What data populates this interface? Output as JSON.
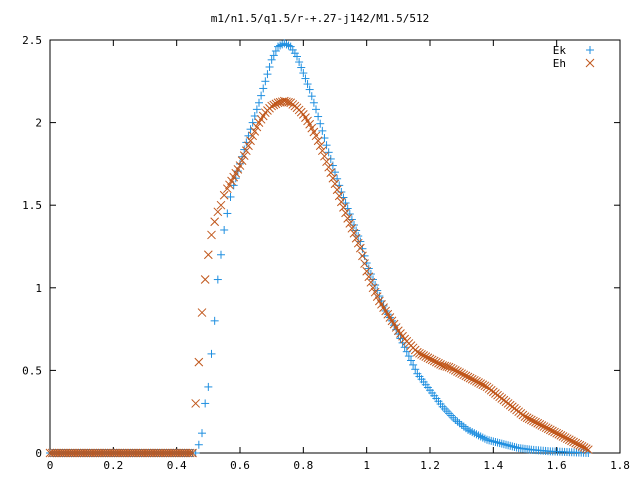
{
  "chart_data": {
    "type": "scatter",
    "title": "m1/n1.5/q1.5/r-+.27-j142/M1.5/512",
    "xlabel": "",
    "ylabel": "",
    "xlim": [
      0,
      1.8
    ],
    "ylim": [
      0,
      2.5
    ],
    "xticks": [
      0,
      0.2,
      0.4,
      0.6,
      0.8,
      1,
      1.2,
      1.4,
      1.6,
      1.8
    ],
    "xtick_labels": [
      "0",
      "0.2",
      "0.4",
      "0.6",
      "0.8",
      "1",
      "1.2",
      "1.4",
      "1.6",
      "1.8"
    ],
    "yticks": [
      0,
      0.5,
      1,
      1.5,
      2,
      2.5
    ],
    "ytick_labels": [
      "0",
      "0.5",
      "1",
      "1.5",
      "2",
      "2.5"
    ],
    "grid": false,
    "legend_position": "top-right",
    "series": [
      {
        "name": "Ek",
        "marker": "plus",
        "color": "#1f8fe0",
        "points": [
          [
            0.0,
            0.0
          ],
          [
            0.05,
            0.0
          ],
          [
            0.1,
            0.0
          ],
          [
            0.15,
            0.0
          ],
          [
            0.2,
            0.0
          ],
          [
            0.25,
            0.0
          ],
          [
            0.3,
            0.0
          ],
          [
            0.35,
            0.0
          ],
          [
            0.4,
            0.0
          ],
          [
            0.45,
            0.0
          ],
          [
            0.46,
            0.0
          ],
          [
            0.47,
            0.05
          ],
          [
            0.48,
            0.12
          ],
          [
            0.49,
            0.3
          ],
          [
            0.5,
            0.4
          ],
          [
            0.51,
            0.6
          ],
          [
            0.52,
            0.8
          ],
          [
            0.53,
            1.05
          ],
          [
            0.54,
            1.2
          ],
          [
            0.55,
            1.35
          ],
          [
            0.56,
            1.45
          ],
          [
            0.57,
            1.55
          ],
          [
            0.58,
            1.62
          ],
          [
            0.6,
            1.75
          ],
          [
            0.62,
            1.88
          ],
          [
            0.64,
            2.0
          ],
          [
            0.66,
            2.12
          ],
          [
            0.68,
            2.25
          ],
          [
            0.7,
            2.38
          ],
          [
            0.72,
            2.46
          ],
          [
            0.74,
            2.48
          ],
          [
            0.76,
            2.46
          ],
          [
            0.78,
            2.4
          ],
          [
            0.8,
            2.3
          ],
          [
            0.82,
            2.2
          ],
          [
            0.84,
            2.08
          ],
          [
            0.86,
            1.95
          ],
          [
            0.88,
            1.82
          ],
          [
            0.9,
            1.7
          ],
          [
            0.92,
            1.58
          ],
          [
            0.94,
            1.48
          ],
          [
            0.96,
            1.38
          ],
          [
            0.98,
            1.28
          ],
          [
            1.0,
            1.15
          ],
          [
            1.02,
            1.05
          ],
          [
            1.04,
            0.95
          ],
          [
            1.06,
            0.86
          ],
          [
            1.08,
            0.8
          ],
          [
            1.1,
            0.72
          ],
          [
            1.12,
            0.64
          ],
          [
            1.14,
            0.56
          ],
          [
            1.16,
            0.48
          ],
          [
            1.18,
            0.43
          ],
          [
            1.2,
            0.38
          ],
          [
            1.22,
            0.33
          ],
          [
            1.24,
            0.28
          ],
          [
            1.26,
            0.24
          ],
          [
            1.28,
            0.2
          ],
          [
            1.3,
            0.17
          ],
          [
            1.32,
            0.14
          ],
          [
            1.34,
            0.12
          ],
          [
            1.36,
            0.1
          ],
          [
            1.38,
            0.08
          ],
          [
            1.4,
            0.07
          ],
          [
            1.42,
            0.06
          ],
          [
            1.44,
            0.05
          ],
          [
            1.46,
            0.04
          ],
          [
            1.48,
            0.03
          ],
          [
            1.5,
            0.025
          ],
          [
            1.52,
            0.02
          ],
          [
            1.55,
            0.015
          ],
          [
            1.58,
            0.01
          ],
          [
            1.61,
            0.008
          ],
          [
            1.64,
            0.005
          ],
          [
            1.67,
            0.003
          ],
          [
            1.7,
            0.0
          ]
        ]
      },
      {
        "name": "Eh",
        "marker": "cross",
        "color": "#c0561a",
        "points": [
          [
            0.0,
            0.0
          ],
          [
            0.05,
            0.0
          ],
          [
            0.1,
            0.0
          ],
          [
            0.15,
            0.0
          ],
          [
            0.2,
            0.0
          ],
          [
            0.25,
            0.0
          ],
          [
            0.3,
            0.0
          ],
          [
            0.35,
            0.0
          ],
          [
            0.4,
            0.0
          ],
          [
            0.45,
            0.0
          ],
          [
            0.46,
            0.3
          ],
          [
            0.47,
            0.55
          ],
          [
            0.48,
            0.85
          ],
          [
            0.49,
            1.05
          ],
          [
            0.5,
            1.2
          ],
          [
            0.51,
            1.32
          ],
          [
            0.52,
            1.4
          ],
          [
            0.53,
            1.46
          ],
          [
            0.54,
            1.5
          ],
          [
            0.55,
            1.56
          ],
          [
            0.56,
            1.6
          ],
          [
            0.58,
            1.67
          ],
          [
            0.6,
            1.74
          ],
          [
            0.62,
            1.83
          ],
          [
            0.64,
            1.92
          ],
          [
            0.66,
            2.0
          ],
          [
            0.68,
            2.06
          ],
          [
            0.7,
            2.1
          ],
          [
            0.72,
            2.12
          ],
          [
            0.74,
            2.13
          ],
          [
            0.76,
            2.12
          ],
          [
            0.78,
            2.09
          ],
          [
            0.8,
            2.05
          ],
          [
            0.82,
            1.99
          ],
          [
            0.84,
            1.92
          ],
          [
            0.86,
            1.83
          ],
          [
            0.88,
            1.73
          ],
          [
            0.9,
            1.63
          ],
          [
            0.92,
            1.52
          ],
          [
            0.94,
            1.42
          ],
          [
            0.96,
            1.33
          ],
          [
            0.98,
            1.24
          ],
          [
            1.0,
            1.1
          ],
          [
            1.02,
            1.0
          ],
          [
            1.04,
            0.92
          ],
          [
            1.06,
            0.86
          ],
          [
            1.08,
            0.8
          ],
          [
            1.1,
            0.74
          ],
          [
            1.12,
            0.69
          ],
          [
            1.14,
            0.65
          ],
          [
            1.16,
            0.61
          ],
          [
            1.18,
            0.59
          ],
          [
            1.2,
            0.57
          ],
          [
            1.22,
            0.55
          ],
          [
            1.24,
            0.53
          ],
          [
            1.26,
            0.52
          ],
          [
            1.28,
            0.5
          ],
          [
            1.3,
            0.48
          ],
          [
            1.32,
            0.46
          ],
          [
            1.34,
            0.44
          ],
          [
            1.36,
            0.42
          ],
          [
            1.38,
            0.4
          ],
          [
            1.4,
            0.37
          ],
          [
            1.42,
            0.34
          ],
          [
            1.44,
            0.31
          ],
          [
            1.46,
            0.28
          ],
          [
            1.48,
            0.25
          ],
          [
            1.5,
            0.22
          ],
          [
            1.52,
            0.2
          ],
          [
            1.54,
            0.18
          ],
          [
            1.56,
            0.16
          ],
          [
            1.58,
            0.14
          ],
          [
            1.6,
            0.12
          ],
          [
            1.62,
            0.1
          ],
          [
            1.64,
            0.08
          ],
          [
            1.66,
            0.06
          ],
          [
            1.68,
            0.04
          ],
          [
            1.7,
            0.02
          ]
        ]
      }
    ]
  }
}
